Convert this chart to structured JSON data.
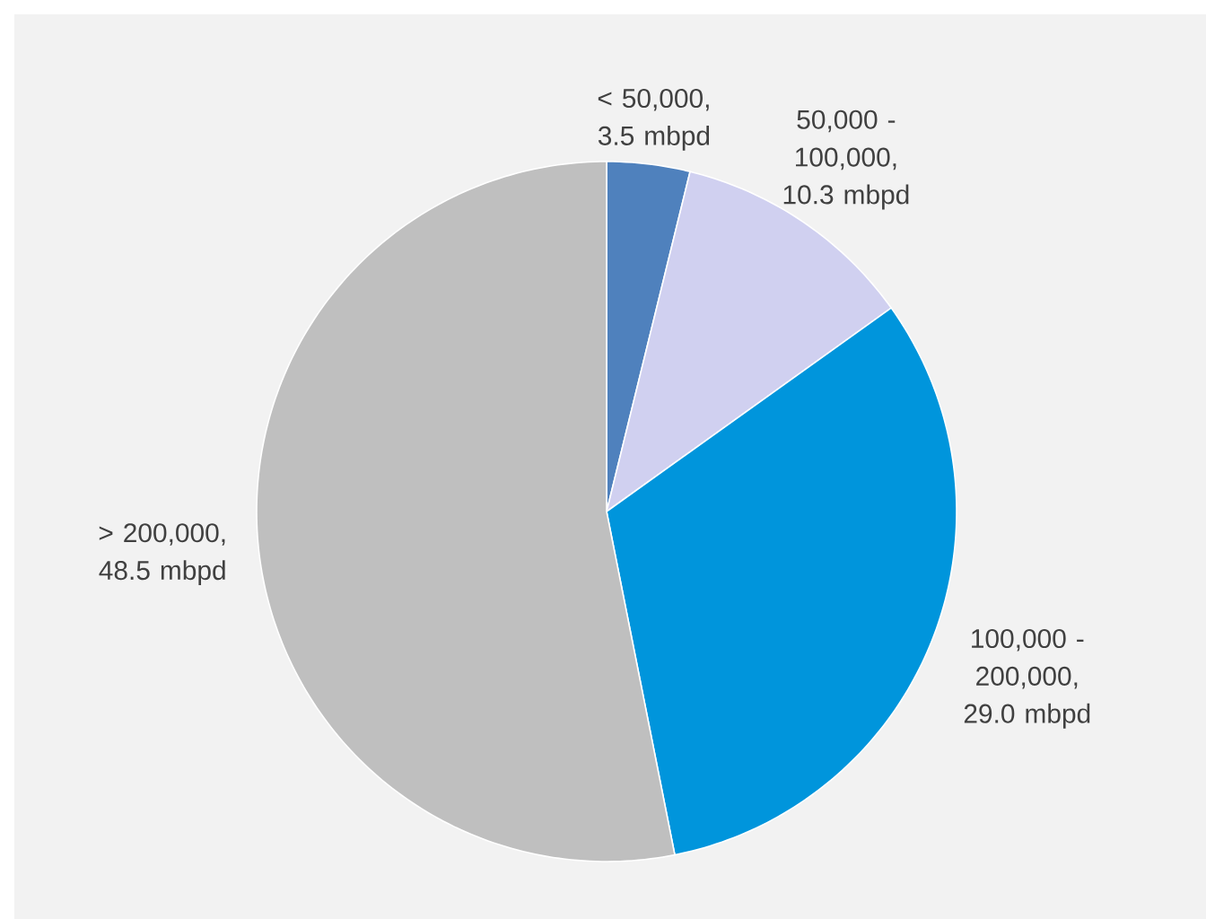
{
  "chart_data": {
    "type": "pie",
    "categories": [
      "< 50,000, 3.5 mbpd",
      "50,000 - 100,000, 10.3 mbpd",
      "100,000 - 200,000, 29.0 mbpd",
      "> 200,000, 48.5 mbpd"
    ],
    "values": [
      3.5,
      10.3,
      29.0,
      48.5
    ],
    "colors": [
      "#4f81bd",
      "#d0d0f0",
      "#0095dc",
      "#bfbfbf"
    ]
  }
}
